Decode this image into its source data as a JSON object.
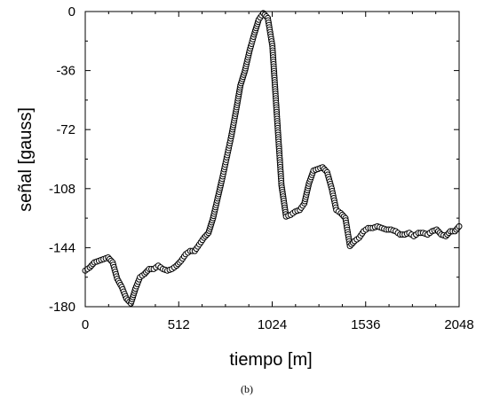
{
  "chart_data": {
    "type": "scatter",
    "title": "",
    "xlabel": "tiempo [m]",
    "ylabel": "señal [gauss]",
    "caption": "(b)",
    "xlim": [
      0,
      2048
    ],
    "ylim": [
      -180,
      0
    ],
    "xticks": [
      0,
      512,
      1024,
      1536,
      2048
    ],
    "yticks": [
      0,
      -36,
      -72,
      -108,
      -144,
      -180
    ],
    "xtick_labels": [
      "0",
      "512",
      "1024",
      "1536",
      "2048"
    ],
    "ytick_labels": [
      "0",
      "-36",
      "-72",
      "-108",
      "-144",
      "-180"
    ],
    "grid": false,
    "legend": "none",
    "marker": "open-circle",
    "connect_line": true,
    "colors": {
      "marker_stroke": "#000000",
      "marker_fill": "#ffffff",
      "line": "#000000",
      "axes": "#000000"
    },
    "series": [
      {
        "x": [
          0,
          25,
          50,
          75,
          100,
          125,
          150,
          175,
          200,
          225,
          250,
          275,
          300,
          325,
          350,
          375,
          400,
          425,
          450,
          475,
          500,
          525,
          550,
          575,
          600,
          625,
          650,
          675,
          700,
          725,
          750,
          775,
          800,
          825,
          850,
          875,
          900,
          925,
          950,
          975,
          1000,
          1025,
          1050,
          1075,
          1100,
          1125,
          1150,
          1175,
          1200,
          1225,
          1250,
          1275,
          1300,
          1325,
          1350,
          1375,
          1400,
          1425,
          1450,
          1475,
          1500,
          1525,
          1550,
          1575,
          1600,
          1625,
          1650,
          1675,
          1700,
          1725,
          1750,
          1775,
          1800,
          1825,
          1850,
          1875,
          1900,
          1925,
          1950,
          1975,
          2000,
          2025,
          2048
        ],
        "y": [
          -158,
          -156,
          -153,
          -152,
          -151,
          -150,
          -153,
          -163,
          -168,
          -175,
          -178,
          -169,
          -162,
          -160,
          -157,
          -157,
          -155,
          -157,
          -158,
          -157,
          -155,
          -152,
          -148,
          -146,
          -146,
          -142,
          -138,
          -135,
          -126,
          -114,
          -102,
          -89,
          -76,
          -61,
          -45,
          -36,
          -24,
          -14,
          -5,
          -1,
          -4,
          -21,
          -64,
          -106,
          -125,
          -124,
          -122,
          -121,
          -117,
          -105,
          -97,
          -96,
          -95,
          -98,
          -108,
          -121,
          -123,
          -126,
          -143,
          -140,
          -138,
          -134,
          -132,
          -132,
          -131,
          -132,
          -133,
          -133,
          -134,
          -136,
          -136,
          -135,
          -137,
          -135,
          -135,
          -136,
          -134,
          -133,
          -136,
          -137,
          -134,
          -134,
          -131
        ]
      }
    ]
  }
}
